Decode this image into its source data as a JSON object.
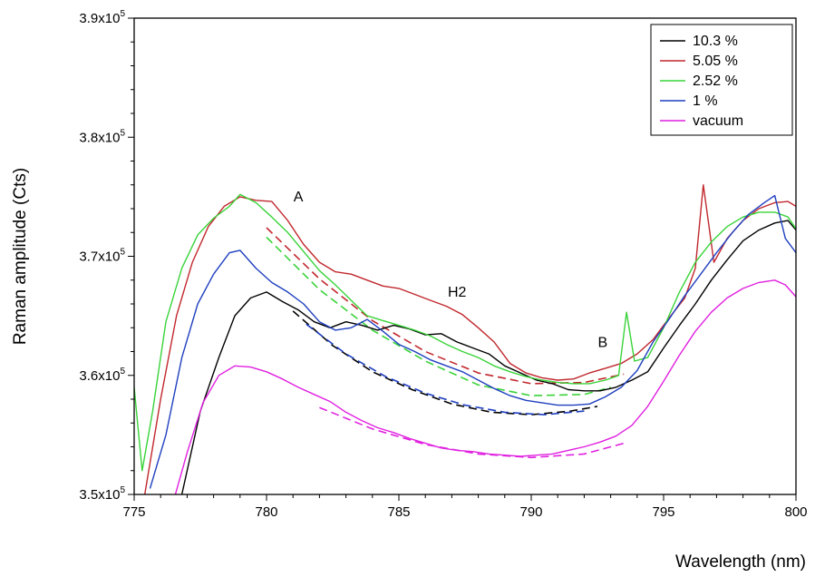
{
  "chart_data": {
    "type": "line",
    "xlabel": "Wavelength (nm)",
    "ylabel": "Raman amplitude (Cts)",
    "xlim": [
      775,
      800
    ],
    "ylim": [
      350000,
      390000
    ],
    "x_ticks": [
      775,
      780,
      785,
      790,
      795,
      800
    ],
    "y_ticks": [
      {
        "value": 350000,
        "mantissa": "3.5x10",
        "exp": "5"
      },
      {
        "value": 360000,
        "mantissa": "3.6x10",
        "exp": "5"
      },
      {
        "value": 370000,
        "mantissa": "3.7x10",
        "exp": "5"
      },
      {
        "value": 380000,
        "mantissa": "3.8x10",
        "exp": "5"
      },
      {
        "value": 390000,
        "mantissa": "3.9x10",
        "exp": "5"
      }
    ],
    "legend_position": "top-right",
    "grid": false,
    "annotations": [
      {
        "text": "A",
        "x": 781.2,
        "y": 374600
      },
      {
        "text": "H2",
        "x": 787.2,
        "y": 366600
      },
      {
        "text": "B",
        "x": 792.7,
        "y": 362400
      }
    ],
    "series": [
      {
        "name": "10.3 %",
        "color": "#000000",
        "x": [
          776.8,
          777.5,
          778.2,
          778.8,
          779.4,
          780.0,
          780.6,
          781.2,
          781.8,
          782.4,
          783.0,
          783.6,
          784.2,
          784.8,
          785.4,
          786.0,
          786.6,
          787.2,
          787.8,
          788.4,
          789.0,
          789.6,
          790.2,
          790.8,
          791.4,
          792.0,
          792.6,
          793.2,
          793.8,
          794.4,
          795.0,
          795.6,
          796.2,
          796.8,
          797.4,
          798.0,
          798.6,
          799.2,
          799.7,
          800.0
        ],
        "y": [
          350000,
          357000,
          361500,
          365000,
          366500,
          367000,
          366200,
          365500,
          364500,
          364000,
          364500,
          364200,
          363800,
          364200,
          363900,
          363400,
          363500,
          362800,
          362300,
          361800,
          360800,
          360200,
          359600,
          359300,
          358800,
          358700,
          358700,
          359000,
          359600,
          360300,
          362300,
          364200,
          366000,
          368000,
          369700,
          371300,
          372200,
          372800,
          373000,
          372200
        ]
      },
      {
        "name": "5.05 %",
        "color": "#c1272d",
        "x": [
          775.4,
          776.0,
          776.6,
          777.2,
          777.8,
          778.4,
          779.0,
          779.6,
          780.2,
          780.8,
          781.4,
          782.0,
          782.6,
          783.2,
          783.8,
          784.4,
          785.0,
          785.6,
          786.2,
          786.8,
          787.4,
          788.0,
          788.6,
          789.2,
          789.8,
          790.4,
          791.0,
          791.6,
          792.2,
          792.8,
          793.4,
          794.0,
          794.6,
          795.2,
          795.8,
          796.2,
          796.5,
          796.9,
          797.4,
          798.0,
          798.6,
          799.2,
          799.7,
          800.0
        ],
        "y": [
          350000,
          358000,
          365000,
          369500,
          372500,
          374200,
          375000,
          374700,
          374600,
          373000,
          371000,
          369500,
          368700,
          368500,
          368000,
          367500,
          367300,
          366800,
          366300,
          365800,
          365100,
          364000,
          362800,
          361000,
          360200,
          359800,
          359600,
          359700,
          360200,
          360600,
          361000,
          361800,
          363000,
          364800,
          366500,
          369000,
          376000,
          369500,
          371500,
          373000,
          374000,
          374500,
          374600,
          374200
        ]
      },
      {
        "name": "2.52 %",
        "color": "#39d339",
        "x": [
          775.0,
          775.3,
          775.7,
          776.2,
          776.8,
          777.4,
          778.0,
          778.6,
          779.0,
          779.6,
          780.2,
          780.8,
          781.4,
          782.0,
          782.6,
          783.2,
          783.8,
          784.4,
          785.0,
          785.6,
          786.2,
          786.8,
          787.4,
          788.0,
          788.6,
          789.2,
          789.8,
          790.4,
          791.0,
          791.6,
          792.2,
          792.8,
          793.3,
          793.6,
          793.9,
          794.4,
          795.0,
          795.6,
          796.2,
          796.8,
          797.4,
          798.0,
          798.6,
          799.2,
          799.7,
          800.0
        ],
        "y": [
          359000,
          352000,
          357000,
          364500,
          369000,
          371800,
          373200,
          374200,
          375200,
          374500,
          373300,
          372000,
          370400,
          368800,
          367600,
          366300,
          365000,
          364600,
          364200,
          363800,
          363300,
          362600,
          362000,
          361500,
          360800,
          360300,
          359900,
          359600,
          359400,
          359300,
          359300,
          359600,
          360000,
          365300,
          361200,
          361500,
          364000,
          367000,
          369500,
          371200,
          372500,
          373300,
          373700,
          373700,
          373300,
          372300
        ]
      },
      {
        "name": "1 %",
        "color": "#1f3fbf",
        "x": [
          775.6,
          776.2,
          776.8,
          777.4,
          778.0,
          778.6,
          779.0,
          779.6,
          780.2,
          780.8,
          781.4,
          782.0,
          782.6,
          783.2,
          783.8,
          784.4,
          785.0,
          785.6,
          786.2,
          786.8,
          787.4,
          788.0,
          788.6,
          789.2,
          789.8,
          790.4,
          791.0,
          791.6,
          792.2,
          792.8,
          793.4,
          794.0,
          794.6,
          795.2,
          795.8,
          796.4,
          797.0,
          797.6,
          798.2,
          798.8,
          799.2,
          799.6,
          800.0
        ],
        "y": [
          350500,
          355000,
          361500,
          366000,
          368500,
          370300,
          370500,
          369000,
          367800,
          367000,
          366000,
          364500,
          363800,
          364000,
          364700,
          363700,
          362600,
          362000,
          361300,
          360800,
          360300,
          359600,
          358900,
          358300,
          357900,
          357700,
          357500,
          357500,
          357600,
          358200,
          359000,
          360400,
          362800,
          364700,
          366700,
          368500,
          370300,
          372000,
          373500,
          374500,
          375100,
          371500,
          370300
        ]
      },
      {
        "name": "vacuum",
        "color": "#e020e0",
        "x": [
          776.3,
          777.0,
          777.6,
          778.2,
          778.8,
          779.4,
          780.0,
          780.6,
          781.2,
          781.8,
          782.4,
          783.0,
          783.6,
          784.2,
          784.8,
          785.4,
          786.0,
          786.6,
          787.2,
          787.8,
          788.4,
          789.0,
          789.6,
          790.2,
          790.8,
          791.4,
          792.0,
          792.6,
          793.2,
          793.8,
          794.4,
          795.0,
          795.6,
          796.2,
          796.8,
          797.4,
          798.0,
          798.6,
          799.2,
          799.6,
          800.0
        ],
        "y": [
          348000,
          353500,
          357700,
          360000,
          360800,
          360700,
          360300,
          359700,
          359000,
          358400,
          357800,
          356900,
          356200,
          355600,
          355200,
          354700,
          354300,
          353900,
          353700,
          353600,
          353400,
          353300,
          353200,
          353300,
          353400,
          353700,
          354000,
          354400,
          354900,
          355800,
          357400,
          359500,
          361700,
          363700,
          365300,
          366500,
          367300,
          367800,
          368000,
          367600,
          366600
        ]
      }
    ],
    "fits": [
      {
        "color": "#c1272d",
        "x": [
          780.0,
          782.0,
          784.0,
          786.0,
          788.0,
          790.0,
          792.0,
          793.5
        ],
        "y": [
          372400,
          368100,
          364600,
          362000,
          360200,
          359300,
          359400,
          360100
        ]
      },
      {
        "color": "#39d339",
        "x": [
          780.0,
          782.0,
          784.0,
          786.0,
          788.0,
          790.0,
          792.0,
          793.0
        ],
        "y": [
          371600,
          367200,
          363800,
          361200,
          359200,
          358300,
          358400,
          359000
        ]
      },
      {
        "color": "#000000",
        "x": [
          781.0,
          782.5,
          784.0,
          785.5,
          787.0,
          788.5,
          790.0,
          791.5,
          792.5
        ],
        "y": [
          365400,
          362500,
          360300,
          358800,
          357600,
          356900,
          356700,
          357000,
          357400
        ]
      },
      {
        "color": "#1f3fbf",
        "x": [
          781.5,
          783.0,
          784.5,
          786.0,
          787.5,
          789.0,
          790.5,
          792.0
        ],
        "y": [
          364300,
          361800,
          359900,
          358500,
          357500,
          356900,
          356700,
          357000
        ]
      },
      {
        "color": "#e020e0",
        "x": [
          782.0,
          784.0,
          786.0,
          788.0,
          790.0,
          792.0,
          793.5
        ],
        "y": [
          357300,
          355500,
          354200,
          353400,
          353100,
          353400,
          354300
        ]
      }
    ]
  }
}
